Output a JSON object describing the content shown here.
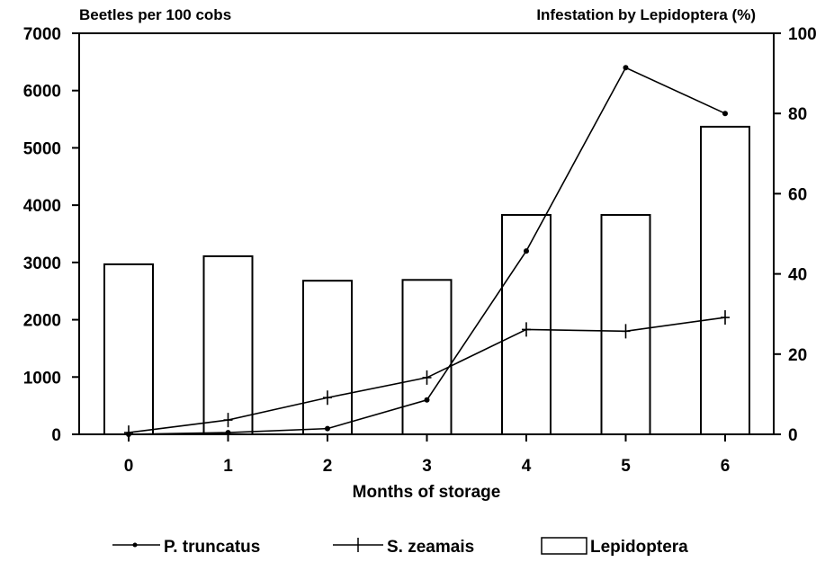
{
  "chart_data": {
    "type": "bar+line",
    "title": "",
    "xlabel": "Months of storage",
    "ylabel_left": "Beetles per 100 cobs",
    "ylabel_right": "Infestation by Lepidoptera (%)",
    "categories": [
      "0",
      "1",
      "2",
      "3",
      "4",
      "5",
      "6"
    ],
    "ylim_left": [
      0,
      7000
    ],
    "ylim_right": [
      0,
      100
    ],
    "yticks_left": [
      "0",
      "1000",
      "2000",
      "3000",
      "4000",
      "5000",
      "6000",
      "7000"
    ],
    "yticks_right": [
      "0",
      "20",
      "40",
      "60",
      "80",
      "100"
    ],
    "grid": false,
    "legend_position": "bottom",
    "series": [
      {
        "name": "P. truncatus",
        "type": "line",
        "axis": "left",
        "marker": "dot",
        "values": [
          0,
          30,
          100,
          600,
          3200,
          6400,
          5600
        ]
      },
      {
        "name": "S. zeamais",
        "type": "line",
        "axis": "left",
        "marker": "plus",
        "values": [
          30,
          250,
          640,
          990,
          1830,
          1800,
          2040
        ]
      },
      {
        "name": "Lepidoptera",
        "type": "bar",
        "axis": "right",
        "values": [
          42.4,
          44.4,
          38.3,
          38.5,
          54.7,
          54.7,
          76.7
        ]
      }
    ]
  }
}
